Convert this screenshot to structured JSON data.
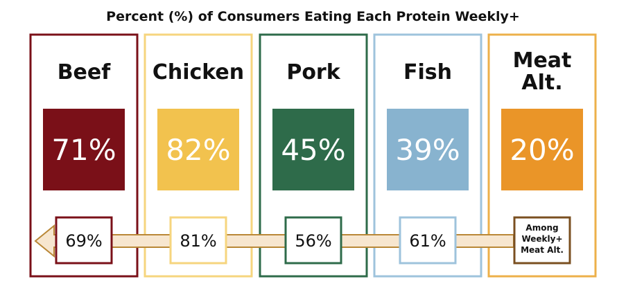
{
  "chart_data": {
    "type": "bar",
    "title": "Percent (%) of Consumers Eating Each Protein Weekly+",
    "categories": [
      "Beef",
      "Chicken",
      "Pork",
      "Fish",
      "Meat Alt."
    ],
    "category_lines": [
      [
        "Beef"
      ],
      [
        "Chicken"
      ],
      [
        "Pork"
      ],
      [
        "Fish"
      ],
      [
        "Meat",
        "Alt."
      ]
    ],
    "values": [
      71,
      82,
      45,
      39,
      20
    ],
    "value_labels": [
      "71%",
      "82%",
      "45%",
      "39%",
      "20%"
    ],
    "among_meat_alt_values": [
      69,
      81,
      56,
      61
    ],
    "among_meat_alt_labels": [
      "69%",
      "81%",
      "56%",
      "61%"
    ],
    "note_lines": [
      "Among",
      "Weekly+",
      "Meat Alt."
    ],
    "colors": {
      "beef": "#7a1018",
      "chicken": "#f2c24e",
      "pork": "#2e6b4a",
      "fish": "#88b3cf",
      "meat_alt": "#ea9528",
      "arrow_fill": "#f7e6cf",
      "arrow_outline": "#b98736",
      "note_border": "#7a4f20",
      "chicken_border": "#f6d57e",
      "fish_border": "#9ec3dc",
      "meat_alt_border": "#edb04a"
    }
  }
}
